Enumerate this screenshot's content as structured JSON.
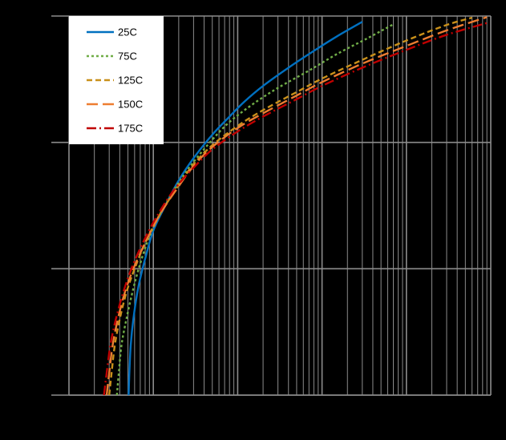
{
  "chart_data": {
    "type": "line",
    "title": "",
    "xlabel": "",
    "ylabel": "",
    "x_scale": "log",
    "y_scale": "log",
    "xlim": [
      0.0001,
      10
    ],
    "ylim": [
      0.01,
      10
    ],
    "grid": true,
    "legend_position": "top-left",
    "series": [
      {
        "name": "25C",
        "color": "#0070C0",
        "dash": "solid",
        "x": [
          0.00051,
          0.00052,
          0.00054,
          0.00058,
          0.00066,
          0.0008,
          0.001,
          0.0014,
          0.002,
          0.003,
          0.005,
          0.008,
          0.012,
          0.02,
          0.04,
          0.08,
          0.15,
          0.3
        ],
        "y": [
          0.01,
          0.015,
          0.025,
          0.04,
          0.07,
          0.12,
          0.2,
          0.32,
          0.5,
          0.75,
          1.15,
          1.6,
          2.1,
          2.8,
          3.9,
          5.3,
          6.9,
          9.0
        ]
      },
      {
        "name": "75C",
        "color": "#70AD47",
        "dash": "3,3",
        "x": [
          0.00037,
          0.00039,
          0.00042,
          0.00048,
          0.00058,
          0.0007,
          0.0009,
          0.0013,
          0.002,
          0.003,
          0.005,
          0.008,
          0.015,
          0.03,
          0.07,
          0.15,
          0.35,
          0.7
        ],
        "y": [
          0.01,
          0.015,
          0.025,
          0.04,
          0.07,
          0.11,
          0.18,
          0.3,
          0.48,
          0.7,
          1.05,
          1.45,
          2.0,
          2.7,
          3.7,
          5.0,
          6.7,
          8.6
        ]
      },
      {
        "name": "125C",
        "color": "#C9901A",
        "dash": "7,4",
        "x": [
          0.0003,
          0.00032,
          0.00035,
          0.0004,
          0.00048,
          0.0006,
          0.0008,
          0.0012,
          0.002,
          0.003,
          0.005,
          0.01,
          0.02,
          0.05,
          0.1,
          0.3,
          1,
          3,
          6
        ],
        "y": [
          0.01,
          0.015,
          0.025,
          0.04,
          0.065,
          0.1,
          0.16,
          0.27,
          0.46,
          0.67,
          0.95,
          1.35,
          1.8,
          2.5,
          3.2,
          4.5,
          6.4,
          8.5,
          9.7
        ]
      },
      {
        "name": "150C",
        "color": "#ED7D31",
        "dash": "14,6",
        "x": [
          0.00028,
          0.0003,
          0.00033,
          0.00038,
          0.00046,
          0.00058,
          0.0008,
          0.0012,
          0.002,
          0.003,
          0.005,
          0.01,
          0.02,
          0.05,
          0.1,
          0.3,
          1,
          3,
          9
        ],
        "y": [
          0.01,
          0.015,
          0.025,
          0.04,
          0.065,
          0.1,
          0.16,
          0.27,
          0.45,
          0.65,
          0.92,
          1.3,
          1.7,
          2.35,
          3.0,
          4.2,
          5.8,
          7.7,
          9.8
        ]
      },
      {
        "name": "175C",
        "color": "#C00000",
        "dash": "12,4,2,4",
        "x": [
          0.00026,
          0.00028,
          0.00031,
          0.00036,
          0.00044,
          0.00055,
          0.00075,
          0.0011,
          0.0018,
          0.003,
          0.005,
          0.01,
          0.02,
          0.05,
          0.1,
          0.3,
          1,
          3,
          9.5
        ],
        "y": [
          0.01,
          0.015,
          0.025,
          0.04,
          0.065,
          0.1,
          0.16,
          0.26,
          0.43,
          0.63,
          0.88,
          1.22,
          1.6,
          2.2,
          2.8,
          3.9,
          5.4,
          7.1,
          8.9
        ]
      }
    ]
  }
}
